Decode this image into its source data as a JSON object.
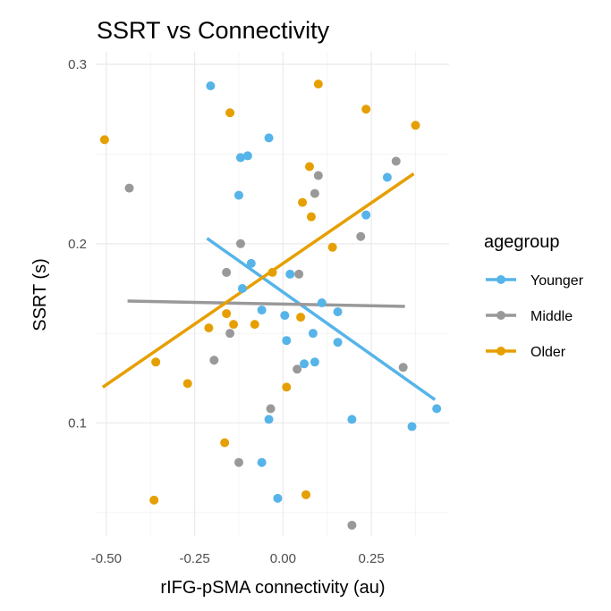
{
  "chart_data": {
    "type": "scatter",
    "title": "SSRT vs Connectivity",
    "xlabel": "rIFG-pSMA connectivity (au)",
    "ylabel": "SSRT (s)",
    "xlim": [
      -0.53,
      0.47
    ],
    "ylim": [
      0.037,
      0.307
    ],
    "x_ticks": [
      -0.5,
      -0.25,
      0.0,
      0.25
    ],
    "x_tick_labels": [
      "-0.50",
      "-0.25",
      "0.00",
      "0.25"
    ],
    "y_ticks": [
      0.1,
      0.2,
      0.3
    ],
    "y_tick_labels": [
      "0.1",
      "0.2",
      "0.3"
    ],
    "grid": true,
    "legend": {
      "title": "agegroup",
      "position": "right"
    },
    "series": [
      {
        "name": "Younger",
        "color": "#56B4E9",
        "points": [
          [
            -0.205,
            0.288
          ],
          [
            -0.04,
            0.259
          ],
          [
            -0.1,
            0.249
          ],
          [
            -0.12,
            0.248
          ],
          [
            -0.125,
            0.227
          ],
          [
            0.295,
            0.237
          ],
          [
            0.235,
            0.216
          ],
          [
            -0.09,
            0.189
          ],
          [
            0.02,
            0.183
          ],
          [
            -0.115,
            0.175
          ],
          [
            0.11,
            0.167
          ],
          [
            -0.06,
            0.163
          ],
          [
            0.005,
            0.16
          ],
          [
            0.155,
            0.162
          ],
          [
            0.085,
            0.15
          ],
          [
            0.01,
            0.146
          ],
          [
            0.155,
            0.145
          ],
          [
            0.09,
            0.134
          ],
          [
            0.06,
            0.133
          ],
          [
            0.435,
            0.108
          ],
          [
            -0.04,
            0.102
          ],
          [
            0.195,
            0.102
          ],
          [
            0.365,
            0.098
          ],
          [
            -0.06,
            0.078
          ],
          [
            -0.015,
            0.058
          ]
        ],
        "fit": [
          [
            -0.215,
            0.203
          ],
          [
            0.43,
            0.113
          ]
        ]
      },
      {
        "name": "Middle",
        "color": "#999999",
        "points": [
          [
            -0.435,
            0.231
          ],
          [
            0.32,
            0.246
          ],
          [
            0.1,
            0.238
          ],
          [
            0.09,
            0.228
          ],
          [
            0.22,
            0.204
          ],
          [
            -0.12,
            0.2
          ],
          [
            -0.16,
            0.184
          ],
          [
            0.045,
            0.183
          ],
          [
            -0.15,
            0.15
          ],
          [
            -0.195,
            0.135
          ],
          [
            0.04,
            0.13
          ],
          [
            0.34,
            0.131
          ],
          [
            -0.035,
            0.108
          ],
          [
            -0.125,
            0.078
          ],
          [
            0.195,
            0.043
          ]
        ],
        "fit": [
          [
            -0.44,
            0.168
          ],
          [
            0.345,
            0.165
          ]
        ]
      },
      {
        "name": "Older",
        "color": "#E69F00",
        "points": [
          [
            -0.505,
            0.258
          ],
          [
            0.1,
            0.289
          ],
          [
            -0.15,
            0.273
          ],
          [
            0.235,
            0.275
          ],
          [
            0.375,
            0.266
          ],
          [
            0.075,
            0.243
          ],
          [
            0.055,
            0.223
          ],
          [
            0.08,
            0.215
          ],
          [
            0.14,
            0.198
          ],
          [
            -0.03,
            0.184
          ],
          [
            -0.16,
            0.161
          ],
          [
            -0.14,
            0.155
          ],
          [
            -0.08,
            0.155
          ],
          [
            0.05,
            0.159
          ],
          [
            -0.21,
            0.153
          ],
          [
            -0.36,
            0.134
          ],
          [
            -0.27,
            0.122
          ],
          [
            0.01,
            0.12
          ],
          [
            -0.165,
            0.089
          ],
          [
            -0.365,
            0.057
          ],
          [
            0.065,
            0.06
          ]
        ],
        "fit": [
          [
            -0.51,
            0.12
          ],
          [
            0.37,
            0.239
          ]
        ]
      }
    ]
  }
}
